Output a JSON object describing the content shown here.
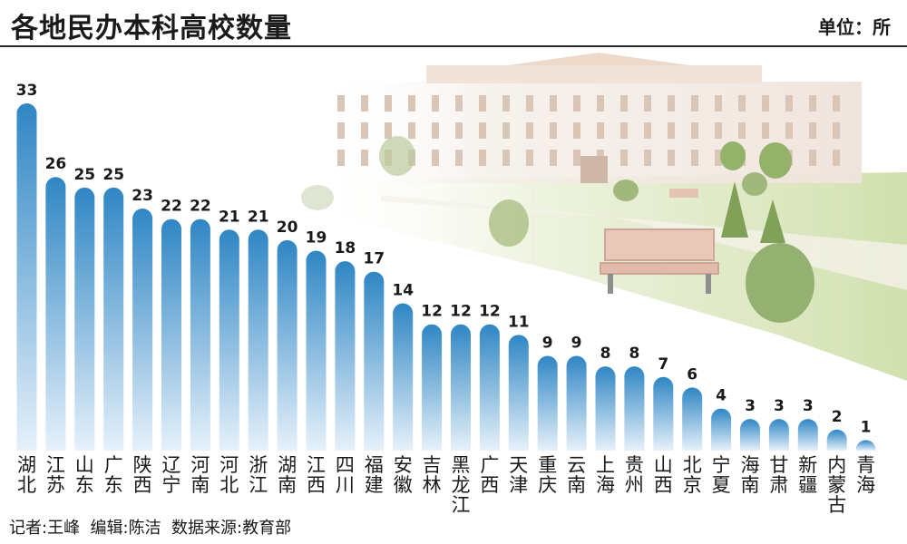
{
  "header": {
    "title": "各地民办本科高校数量",
    "unit": "单位：所"
  },
  "footer": {
    "credits": "记者:王峰  编辑:陈洁  数据来源:教育部"
  },
  "colors": {
    "bar_top": "#2f86c4",
    "bar_bottom": "#e6f1fa",
    "accent": "#1f6fae"
  },
  "chart_data": {
    "type": "bar",
    "title": "各地民办本科高校数量",
    "unit": "单位：所",
    "categories": [
      "湖北",
      "江苏",
      "山东",
      "广东",
      "陕西",
      "辽宁",
      "河南",
      "河北",
      "浙江",
      "湖南",
      "江西",
      "四川",
      "福建",
      "安徽",
      "吉林",
      "黑龙江",
      "广西",
      "天津",
      "重庆",
      "云南",
      "上海",
      "贵州",
      "山西",
      "北京",
      "宁夏",
      "海南",
      "甘肃",
      "新疆",
      "内蒙古",
      "青海"
    ],
    "values": [
      33,
      26,
      25,
      25,
      23,
      22,
      22,
      21,
      21,
      20,
      19,
      18,
      17,
      14,
      12,
      12,
      12,
      11,
      9,
      9,
      8,
      8,
      7,
      6,
      4,
      3,
      3,
      3,
      2,
      1
    ],
    "ylim": [
      0,
      33
    ],
    "grid": false,
    "legend": "none"
  }
}
